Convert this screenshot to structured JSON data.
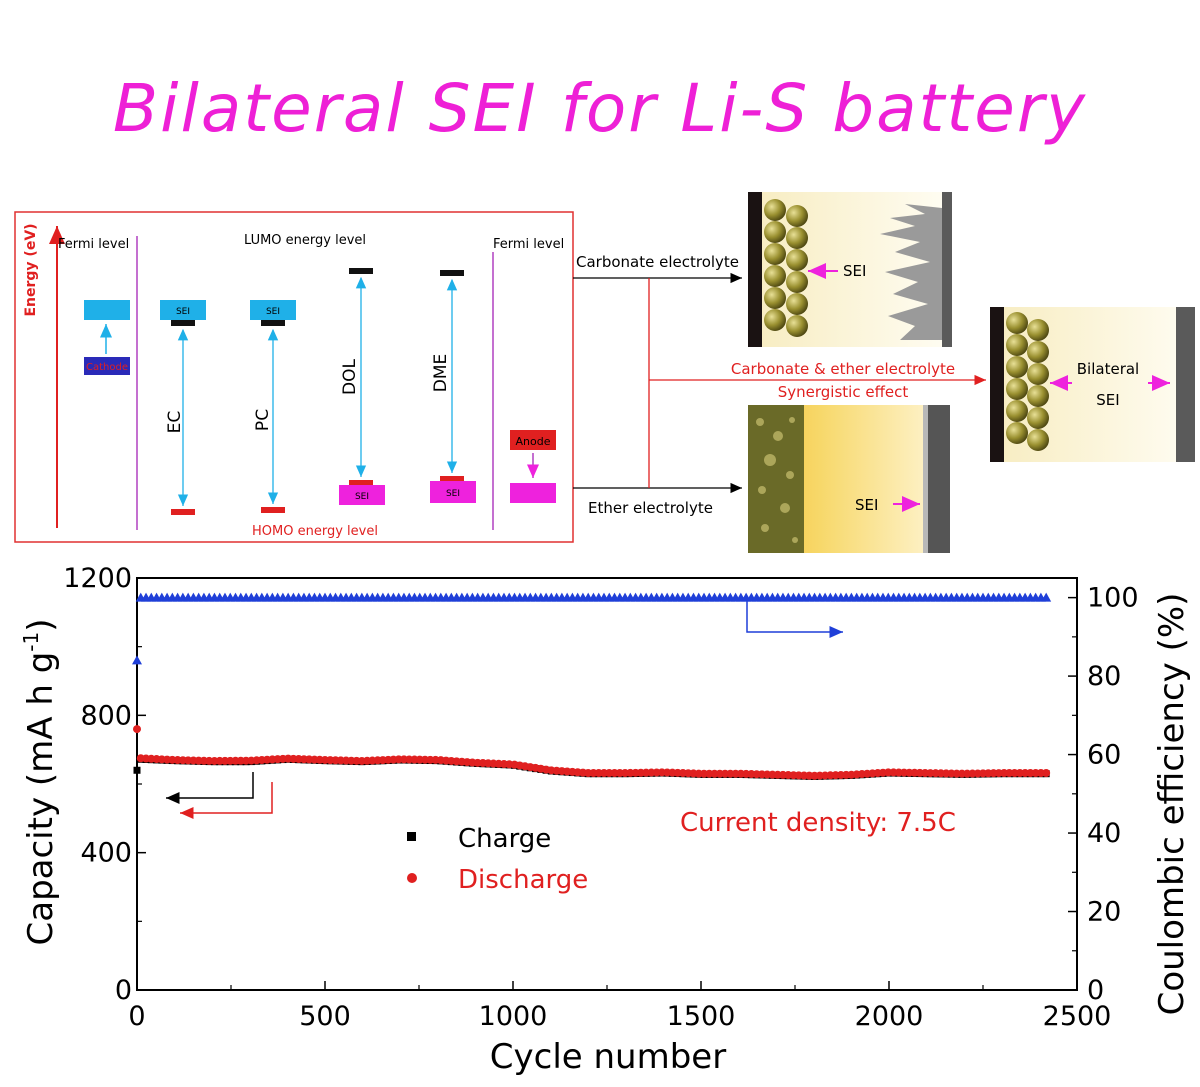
{
  "title": "Bilateral SEI for Li-S battery",
  "energy_diagram": {
    "y_axis_label": "Energy (eV)",
    "fermi_left": "Fermi level",
    "fermi_right": "Fermi level",
    "lumo_label": "LUMO energy level",
    "homo_label": "HOMO energy level",
    "cathode_label": "Cathode",
    "anode_label": "Anode",
    "sei_label": "SEI",
    "solvents": [
      "EC",
      "PC",
      "DOL",
      "DME"
    ],
    "colors": {
      "frame": "#e03030",
      "cyan": "#1fb0e8",
      "magenta": "#ee22dd",
      "red": "#e02020",
      "navy": "#2a2ab8",
      "purple": "#b040c0"
    }
  },
  "schematic": {
    "carbonate_label": "Carbonate electrolyte",
    "ether_label": "Ether electrolyte",
    "combo_label": "Carbonate & ether electrolyte",
    "synergy_label": "Synergistic  effect",
    "sei_label": "SEI",
    "bilateral_label": "Bilateral",
    "bilateral_sei_label": "SEI"
  },
  "chart_data": {
    "type": "scatter",
    "xlabel": "Cycle number",
    "ylabel_left": "Capacity (mA h g",
    "ylabel_left_sup": "-1",
    "ylabel_left_end": ")",
    "ylabel_right": "Coulombic efficiency (%)",
    "xlim": [
      0,
      2500
    ],
    "ylim_left": [
      0,
      1200
    ],
    "ylim_right": [
      0,
      105
    ],
    "xticks": [
      0,
      500,
      1000,
      1500,
      2000,
      2500
    ],
    "yticks_left": [
      0,
      400,
      800,
      1200
    ],
    "yticks_right": [
      0,
      20,
      40,
      60,
      80,
      100
    ],
    "annotation": "Current density: 7.5C",
    "series": [
      {
        "name": "Charge",
        "axis": "left",
        "color": "#000000",
        "marker": "square",
        "x": [
          0,
          10,
          100,
          200,
          300,
          400,
          500,
          600,
          700,
          800,
          900,
          1000,
          1100,
          1200,
          1300,
          1400,
          1500,
          1600,
          1700,
          1800,
          1900,
          2000,
          2100,
          2200,
          2300,
          2420
        ],
        "y": [
          640,
          672,
          668,
          665,
          665,
          672,
          668,
          665,
          670,
          668,
          660,
          655,
          638,
          630,
          630,
          632,
          628,
          628,
          625,
          622,
          625,
          632,
          630,
          628,
          630,
          630
        ]
      },
      {
        "name": "Discharge",
        "axis": "left",
        "color": "#e02020",
        "marker": "circle",
        "x": [
          0,
          10,
          100,
          200,
          300,
          400,
          500,
          600,
          700,
          800,
          900,
          1000,
          1100,
          1200,
          1300,
          1400,
          1500,
          1600,
          1700,
          1800,
          1900,
          2000,
          2100,
          2200,
          2300,
          2420
        ],
        "y": [
          760,
          675,
          670,
          667,
          668,
          674,
          670,
          667,
          672,
          670,
          662,
          657,
          640,
          632,
          632,
          634,
          630,
          630,
          627,
          624,
          627,
          634,
          632,
          630,
          632,
          632
        ]
      },
      {
        "name": "Coulombic efficiency",
        "axis": "right",
        "color": "#1f3fd8",
        "marker": "triangle",
        "x": [
          0,
          10,
          500,
          1000,
          1500,
          2000,
          2420
        ],
        "y": [
          84,
          100,
          100,
          100,
          100,
          100,
          100
        ]
      }
    ]
  }
}
